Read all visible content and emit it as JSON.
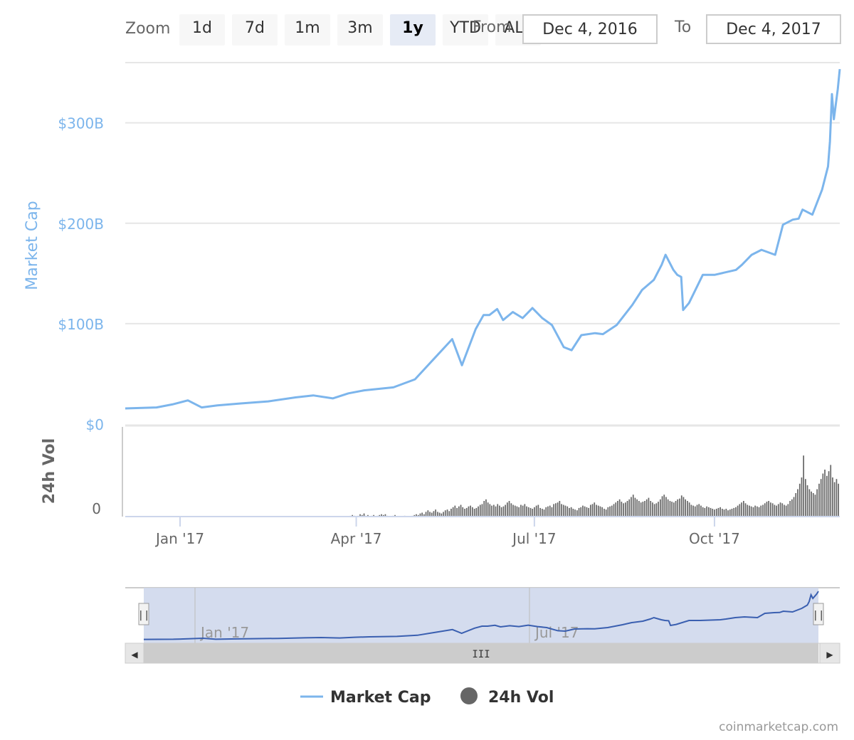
{
  "toolbar": {
    "zoom_label": "Zoom",
    "buttons": [
      "1d",
      "7d",
      "1m",
      "3m",
      "1y",
      "YTD",
      "ALL"
    ],
    "active": "1y",
    "from_label": "From",
    "from_value": "Dec 4, 2016",
    "to_label": "To",
    "to_value": "Dec 4, 2017"
  },
  "credit": "coinmarketcap.com",
  "colors": {
    "market_cap": "#7cb5ec",
    "volume": "#666666",
    "navigator": "#3a5fb0"
  },
  "chart_data": {
    "type": "line",
    "title": "",
    "x_axis": {
      "type": "date",
      "range": [
        "2016-12-04",
        "2017-12-04"
      ],
      "tick_labels": [
        "Jan '17",
        "Apr '17",
        "Jul '17",
        "Oct '17"
      ]
    },
    "market_cap": {
      "name": "Market Cap",
      "axis_title": "Market Cap",
      "unit": "USD billions",
      "ylim": [
        0,
        360
      ],
      "y_tick_labels": [
        "$0",
        "$100B",
        "$200B",
        "$300B"
      ],
      "x": [
        "2016-12-04",
        "2016-12-20",
        "2016-12-28",
        "2017-01-05",
        "2017-01-12",
        "2017-01-20",
        "2017-02-01",
        "2017-02-15",
        "2017-03-01",
        "2017-03-10",
        "2017-03-20",
        "2017-03-28",
        "2017-04-05",
        "2017-04-20",
        "2017-05-01",
        "2017-05-10",
        "2017-05-20",
        "2017-05-25",
        "2017-06-01",
        "2017-06-05",
        "2017-06-08",
        "2017-06-12",
        "2017-06-15",
        "2017-06-20",
        "2017-06-25",
        "2017-06-30",
        "2017-07-05",
        "2017-07-10",
        "2017-07-16",
        "2017-07-20",
        "2017-07-25",
        "2017-08-01",
        "2017-08-05",
        "2017-08-12",
        "2017-08-20",
        "2017-08-25",
        "2017-08-31",
        "2017-09-04",
        "2017-09-06",
        "2017-09-10",
        "2017-09-12",
        "2017-09-14",
        "2017-09-15",
        "2017-09-18",
        "2017-09-25",
        "2017-10-01",
        "2017-10-12",
        "2017-10-15",
        "2017-10-20",
        "2017-10-25",
        "2017-11-01",
        "2017-11-05",
        "2017-11-10",
        "2017-11-13",
        "2017-11-15",
        "2017-11-20",
        "2017-11-25",
        "2017-11-28",
        "2017-11-29",
        "2017-11-30",
        "2017-12-01",
        "2017-12-03",
        "2017-12-04"
      ],
      "values": [
        17,
        18,
        21,
        25,
        18,
        20,
        22,
        24,
        28,
        30,
        27,
        32,
        35,
        38,
        46,
        65,
        86,
        60,
        96,
        110,
        110,
        116,
        105,
        113,
        107,
        117,
        107,
        100,
        78,
        75,
        90,
        92,
        91,
        100,
        120,
        135,
        145,
        160,
        170,
        155,
        150,
        148,
        115,
        122,
        150,
        150,
        155,
        160,
        170,
        175,
        170,
        200,
        205,
        206,
        215,
        210,
        235,
        258,
        283,
        330,
        305,
        335,
        355
      ]
    },
    "volume": {
      "name": "24h Vol",
      "axis_title": "24h Vol",
      "y_tick_labels": [
        "0"
      ],
      "values_relative": [
        0,
        0,
        0,
        0,
        0,
        0,
        0,
        0,
        0,
        0,
        0,
        0,
        0,
        0,
        0,
        0,
        0,
        0,
        0,
        0,
        0,
        0,
        0,
        0,
        0,
        0,
        0,
        0,
        0,
        0,
        0,
        0,
        0,
        0,
        0,
        0,
        0,
        0,
        0,
        0,
        0,
        0,
        0,
        0,
        0,
        0,
        0,
        0,
        0,
        0,
        0,
        0,
        0,
        0,
        0,
        0,
        0,
        0,
        0,
        0,
        0,
        0,
        0,
        0,
        0,
        0,
        0,
        0,
        0,
        0,
        0,
        0,
        0,
        0,
        0,
        0,
        0,
        0,
        0,
        0,
        0,
        0,
        0,
        0,
        0,
        0,
        0,
        0,
        0,
        0,
        0,
        0,
        0,
        0,
        0,
        0,
        0,
        0,
        0,
        0,
        0,
        0,
        0,
        0,
        0,
        0,
        0,
        0,
        0,
        0,
        0,
        0,
        0,
        0,
        0,
        0,
        0.01,
        0.02,
        0.01,
        0,
        0.01,
        0.03,
        0.02,
        0.04,
        0.01,
        0.02,
        0,
        0.01,
        0.02,
        0,
        0.01,
        0.02,
        0.03,
        0.02,
        0.03,
        0.01,
        0,
        0,
        0.01,
        0.02,
        0,
        0,
        0,
        0,
        0.01,
        0,
        0,
        0,
        0.01,
        0.02,
        0.03,
        0.02,
        0.04,
        0.05,
        0.03,
        0.06,
        0.08,
        0.06,
        0.05,
        0.07,
        0.09,
        0.06,
        0.05,
        0.04,
        0.06,
        0.08,
        0.09,
        0.07,
        0.1,
        0.12,
        0.14,
        0.11,
        0.13,
        0.15,
        0.12,
        0.1,
        0.11,
        0.13,
        0.14,
        0.12,
        0.1,
        0.11,
        0.13,
        0.15,
        0.16,
        0.2,
        0.22,
        0.18,
        0.16,
        0.14,
        0.15,
        0.13,
        0.16,
        0.14,
        0.12,
        0.13,
        0.15,
        0.18,
        0.2,
        0.17,
        0.15,
        0.14,
        0.13,
        0.12,
        0.15,
        0.14,
        0.16,
        0.13,
        0.12,
        0.11,
        0.1,
        0.12,
        0.14,
        0.15,
        0.11,
        0.1,
        0.09,
        0.12,
        0.13,
        0.14,
        0.12,
        0.16,
        0.17,
        0.18,
        0.2,
        0.16,
        0.15,
        0.14,
        0.13,
        0.11,
        0.12,
        0.1,
        0.09,
        0.08,
        0.11,
        0.12,
        0.14,
        0.13,
        0.12,
        0.11,
        0.15,
        0.16,
        0.18,
        0.15,
        0.14,
        0.13,
        0.12,
        0.1,
        0.09,
        0.12,
        0.13,
        0.14,
        0.16,
        0.18,
        0.2,
        0.22,
        0.19,
        0.17,
        0.18,
        0.2,
        0.22,
        0.25,
        0.28,
        0.24,
        0.22,
        0.2,
        0.18,
        0.19,
        0.2,
        0.22,
        0.24,
        0.2,
        0.18,
        0.16,
        0.17,
        0.19,
        0.22,
        0.26,
        0.28,
        0.25,
        0.22,
        0.2,
        0.19,
        0.18,
        0.2,
        0.22,
        0.23,
        0.27,
        0.25,
        0.22,
        0.2,
        0.18,
        0.15,
        0.14,
        0.13,
        0.15,
        0.16,
        0.14,
        0.12,
        0.11,
        0.13,
        0.12,
        0.11,
        0.1,
        0.09,
        0.1,
        0.11,
        0.12,
        0.1,
        0.09,
        0.1,
        0.08,
        0.09,
        0.1,
        0.11,
        0.12,
        0.14,
        0.16,
        0.18,
        0.2,
        0.17,
        0.15,
        0.14,
        0.13,
        0.12,
        0.14,
        0.13,
        0.12,
        0.14,
        0.15,
        0.17,
        0.19,
        0.2,
        0.18,
        0.17,
        0.15,
        0.14,
        0.16,
        0.18,
        0.17,
        0.15,
        0.14,
        0.16,
        0.2,
        0.22,
        0.25,
        0.3,
        0.35,
        0.42,
        0.5,
        0.78,
        0.48,
        0.4,
        0.35,
        0.32,
        0.3,
        0.28,
        0.35,
        0.42,
        0.48,
        0.55,
        0.6,
        0.52,
        0.58,
        0.66,
        0.5,
        0.44,
        0.48,
        0.42
      ]
    }
  },
  "navigator": {
    "tick_labels": [
      "Jan '17",
      "Jul '17"
    ],
    "scroll_thumb": "III",
    "left_arrow": "◀",
    "right_arrow": "▶",
    "handle_glyph": "||"
  },
  "legend": [
    {
      "name": "Market Cap",
      "kind": "line"
    },
    {
      "name": "24h Vol",
      "kind": "circle"
    }
  ]
}
